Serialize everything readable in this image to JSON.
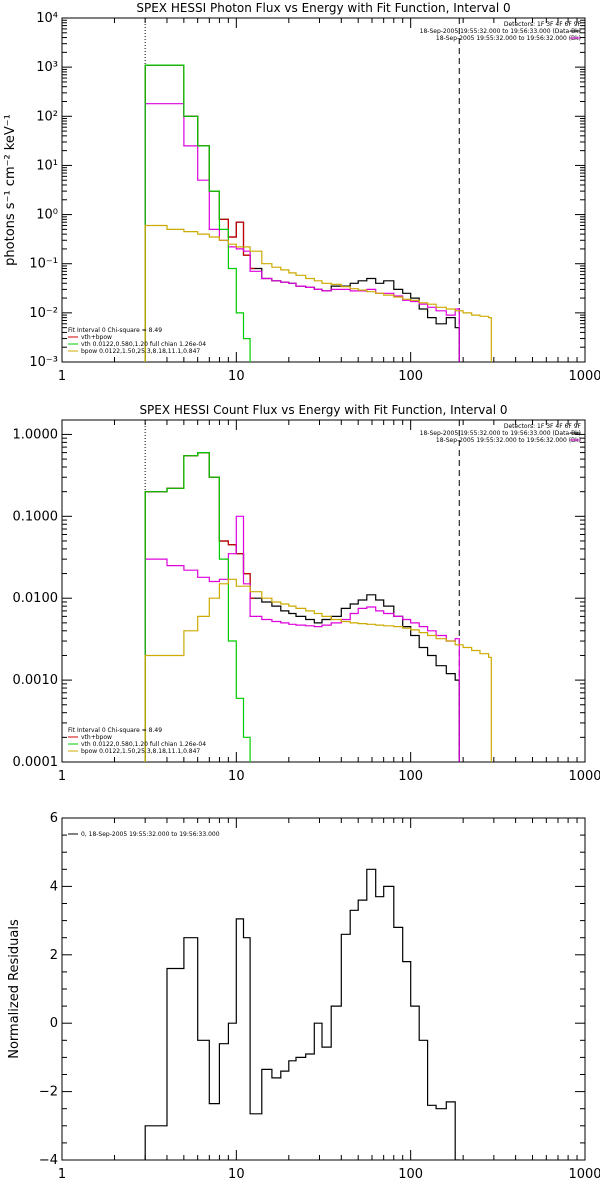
{
  "chart_data": [
    {
      "type": "line",
      "title": "SPEX HESSI Photon Flux vs Energy with Fit Function, Interval 0",
      "ylabel": "photons s⁻¹ cm⁻² keV⁻¹",
      "xlabel": "",
      "xscale": "log",
      "yscale": "log",
      "xlim": [
        1,
        1000
      ],
      "ylim": [
        0.001,
        10000
      ],
      "xticks": [
        {
          "v": 1,
          "label": "1"
        },
        {
          "v": 10,
          "label": "10"
        },
        {
          "v": 100,
          "label": "100"
        },
        {
          "v": 1000,
          "label": "1000"
        }
      ],
      "yticks": [
        {
          "v": 0.001,
          "label": "10⁻³"
        },
        {
          "v": 0.01,
          "label": "10⁻²"
        },
        {
          "v": 0.1,
          "label": "10⁻¹"
        },
        {
          "v": 1,
          "label": "10⁰"
        },
        {
          "v": 10,
          "label": "10¹"
        },
        {
          "v": 100,
          "label": "10²"
        },
        {
          "v": 1000,
          "label": "10³"
        },
        {
          "v": 10000,
          "label": "10⁴"
        }
      ],
      "vlines": [
        {
          "x": 3,
          "style": "dotted"
        },
        {
          "x": 190,
          "style": "dashed"
        }
      ],
      "info_lines": [
        {
          "text": "Detectors: 1F 3F 4F 6F 9F",
          "color": "#000000"
        },
        {
          "text": "18-Sep-2005 19:55:32.000 to 19:56:33.000 (Data-Bk)",
          "color": "#000000"
        },
        {
          "text": "18-Sep-2005 19:55:32.000 to 19:56:32.000 (Bk)",
          "color": "#000000"
        }
      ],
      "legend": [
        {
          "text": "Fit Interval 0   Chi-square = 8.49",
          "color": "#000000"
        },
        {
          "text": "vth+bpow",
          "color": "#cc0000"
        },
        {
          "text": "vth 0.0122,0.580,1.20  full chian 1.26e-04",
          "color": "#00cc00"
        },
        {
          "text": "bpow 0.0122,1.50,25.3,8.18,11.1,0.847",
          "color": "#ccaa00"
        }
      ],
      "series": [
        {
          "color": "#000000",
          "x": [
            3,
            4,
            5,
            6,
            7,
            8,
            9,
            10,
            11,
            12,
            14,
            16,
            18,
            20,
            22,
            25,
            28,
            31,
            35,
            40,
            45,
            50,
            56,
            63,
            70,
            80,
            90,
            100,
            112,
            125,
            140,
            160,
            180,
            190
          ],
          "y": [
            1100,
            1100,
            100,
            25,
            3,
            0.8,
            0.35,
            0.7,
            0.15,
            0.08,
            0.05,
            0.045,
            0.042,
            0.04,
            0.035,
            0.033,
            0.03,
            0.028,
            0.035,
            0.035,
            0.04,
            0.045,
            0.05,
            0.04,
            0.045,
            0.03,
            0.025,
            0.02,
            0.012,
            0.008,
            0.006,
            0.008,
            0.005,
            0.0005
          ]
        },
        {
          "color": "#cc0000",
          "x": [
            3,
            4,
            5,
            6,
            7,
            8,
            9,
            10,
            11,
            12
          ],
          "y": [
            1100,
            1100,
            100,
            25,
            3,
            0.8,
            0.35,
            0.7,
            0.15,
            0.08
          ]
        },
        {
          "color": "#dd00dd",
          "x": [
            3,
            4,
            5,
            6,
            7,
            8,
            9,
            10,
            11,
            12,
            14,
            16,
            18,
            20,
            22,
            25,
            28,
            31,
            35,
            40,
            45,
            50,
            56,
            63,
            70,
            80,
            90,
            100,
            112,
            125,
            140,
            160,
            180,
            190
          ],
          "y": [
            180,
            180,
            25,
            5,
            0.5,
            0.3,
            0.22,
            0.2,
            0.18,
            0.07,
            0.05,
            0.045,
            0.042,
            0.04,
            0.035,
            0.033,
            0.03,
            0.028,
            0.03,
            0.03,
            0.028,
            0.028,
            0.03,
            0.025,
            0.025,
            0.022,
            0.018,
            0.017,
            0.015,
            0.013,
            0.011,
            0.009,
            0.012,
            0.0005
          ]
        },
        {
          "color": "#00cc00",
          "x": [
            3,
            4,
            5,
            6,
            7,
            8,
            9,
            10,
            11,
            12
          ],
          "y": [
            1100,
            1100,
            100,
            25,
            3,
            0.5,
            0.08,
            0.01,
            0.003,
            0.0005
          ]
        },
        {
          "color": "#ccaa00",
          "x": [
            3,
            4,
            5,
            6,
            7,
            8,
            9,
            10,
            12,
            14,
            16,
            18,
            20,
            22,
            25,
            28,
            31,
            35,
            40,
            45,
            50,
            56,
            63,
            70,
            80,
            90,
            100,
            112,
            125,
            140,
            160,
            180,
            200,
            224,
            250,
            280,
            290
          ],
          "y": [
            0.6,
            0.5,
            0.45,
            0.4,
            0.35,
            0.3,
            0.25,
            0.22,
            0.18,
            0.1,
            0.085,
            0.075,
            0.065,
            0.058,
            0.05,
            0.045,
            0.04,
            0.038,
            0.034,
            0.031,
            0.029,
            0.027,
            0.025,
            0.023,
            0.021,
            0.019,
            0.018,
            0.016,
            0.015,
            0.013,
            0.012,
            0.011,
            0.01,
            0.009,
            0.0085,
            0.008,
            0.0005
          ]
        }
      ]
    },
    {
      "type": "line",
      "title": "SPEX HESSI Count Flux vs Energy with Fit Function, Interval 0",
      "ylabel": "",
      "xlabel": "",
      "xscale": "log",
      "yscale": "log",
      "xlim": [
        1,
        1000
      ],
      "ylim": [
        0.0001,
        1.5
      ],
      "xticks": [
        {
          "v": 1,
          "label": "1"
        },
        {
          "v": 10,
          "label": "10"
        },
        {
          "v": 100,
          "label": "100"
        },
        {
          "v": 1000,
          "label": "1000"
        }
      ],
      "yticks": [
        {
          "v": 0.0001,
          "label": "0.0001"
        },
        {
          "v": 0.001,
          "label": "0.0010"
        },
        {
          "v": 0.01,
          "label": "0.0100"
        },
        {
          "v": 0.1,
          "label": "0.1000"
        },
        {
          "v": 1,
          "label": "1.0000"
        }
      ],
      "vlines": [
        {
          "x": 3,
          "style": "dotted"
        },
        {
          "x": 190,
          "style": "dashed"
        }
      ],
      "info_lines": [
        {
          "text": "Detectors: 1F 3F 4F 6F 9F",
          "color": "#000000"
        },
        {
          "text": "18-Sep-2005 19:55:32.000 to 19:56:33.000 (Data-Bk)",
          "color": "#000000"
        },
        {
          "text": "18-Sep-2005 19:55:32.000 to 19:56:32.000 (Bk)",
          "color": "#000000"
        }
      ],
      "legend": [
        {
          "text": "Fit Interval 0   Chi-square = 8.49",
          "color": "#000000"
        },
        {
          "text": "vth+bpow",
          "color": "#cc0000"
        },
        {
          "text": "vth 0.0122,0.580,1.20  full chian 1.26e-04",
          "color": "#00cc00"
        },
        {
          "text": "bpow 0.0122,1.50,25.3,8.18,11.1,0.847",
          "color": "#ccaa00"
        }
      ],
      "series": [
        {
          "color": "#000000",
          "x": [
            3,
            4,
            5,
            6,
            7,
            8,
            9,
            10,
            11,
            12,
            14,
            16,
            18,
            20,
            22,
            25,
            28,
            31,
            35,
            40,
            45,
            50,
            56,
            63,
            70,
            80,
            90,
            100,
            112,
            125,
            140,
            160,
            180,
            190
          ],
          "y": [
            0.2,
            0.22,
            0.55,
            0.6,
            0.3,
            0.05,
            0.045,
            0.035,
            0.02,
            0.01,
            0.009,
            0.008,
            0.007,
            0.0065,
            0.006,
            0.0055,
            0.005,
            0.0055,
            0.006,
            0.0075,
            0.0085,
            0.0095,
            0.011,
            0.0095,
            0.008,
            0.006,
            0.0045,
            0.0035,
            0.0025,
            0.002,
            0.0015,
            0.0012,
            0.001,
            5e-05
          ]
        },
        {
          "color": "#cc0000",
          "x": [
            3,
            4,
            5,
            6,
            7,
            8,
            9,
            10,
            11,
            12
          ],
          "y": [
            0.2,
            0.22,
            0.55,
            0.6,
            0.3,
            0.05,
            0.045,
            0.035,
            0.02,
            0.01
          ]
        },
        {
          "color": "#dd00dd",
          "x": [
            3,
            4,
            5,
            6,
            7,
            8,
            9,
            10,
            11,
            12,
            14,
            16,
            18,
            20,
            22,
            25,
            28,
            31,
            35,
            40,
            45,
            50,
            56,
            63,
            70,
            80,
            90,
            100,
            112,
            125,
            140,
            160,
            180,
            190
          ],
          "y": [
            0.03,
            0.025,
            0.022,
            0.018,
            0.016,
            0.017,
            0.035,
            0.1,
            0.015,
            0.006,
            0.0055,
            0.0052,
            0.005,
            0.0048,
            0.0047,
            0.0046,
            0.0045,
            0.0047,
            0.005,
            0.0055,
            0.0065,
            0.0075,
            0.0078,
            0.007,
            0.0065,
            0.006,
            0.0055,
            0.005,
            0.0045,
            0.004,
            0.0035,
            0.003,
            0.0032,
            5e-05
          ]
        },
        {
          "color": "#00cc00",
          "x": [
            3,
            4,
            5,
            6,
            7,
            8,
            9,
            10,
            11,
            12
          ],
          "y": [
            0.2,
            0.22,
            0.55,
            0.6,
            0.3,
            0.03,
            0.003,
            0.0006,
            0.0002,
            5e-05
          ]
        },
        {
          "color": "#ccaa00",
          "x": [
            3,
            4,
            5,
            6,
            7,
            8,
            9,
            10,
            12,
            14,
            16,
            18,
            20,
            22,
            25,
            28,
            31,
            35,
            40,
            45,
            50,
            56,
            63,
            70,
            80,
            90,
            100,
            112,
            125,
            140,
            160,
            180,
            200,
            224,
            250,
            280,
            290
          ],
          "y": [
            0.002,
            0.002,
            0.004,
            0.006,
            0.01,
            0.015,
            0.017,
            0.014,
            0.012,
            0.01,
            0.009,
            0.0085,
            0.008,
            0.0075,
            0.007,
            0.0065,
            0.006,
            0.0055,
            0.0052,
            0.005,
            0.0049,
            0.0048,
            0.0047,
            0.0046,
            0.0045,
            0.0043,
            0.0041,
            0.0038,
            0.0035,
            0.0032,
            0.003,
            0.0027,
            0.0025,
            0.0023,
            0.0021,
            0.0019,
            5e-05
          ]
        }
      ]
    },
    {
      "type": "line",
      "title": "",
      "ylabel": "Normalized Residuals",
      "xlabel": "",
      "xscale": "log",
      "yscale": "linear",
      "xlim": [
        1,
        1000
      ],
      "ylim": [
        -4,
        6
      ],
      "xticks": [
        {
          "v": 1,
          "label": "1"
        },
        {
          "v": 10,
          "label": "10"
        },
        {
          "v": 100,
          "label": "100"
        },
        {
          "v": 1000,
          "label": "1000"
        }
      ],
      "yticks": [
        {
          "v": -4,
          "label": "−4"
        },
        {
          "v": -2,
          "label": "−2"
        },
        {
          "v": 0,
          "label": "0"
        },
        {
          "v": 2,
          "label": "2"
        },
        {
          "v": 4,
          "label": "4"
        },
        {
          "v": 6,
          "label": "6"
        }
      ],
      "vlines": [],
      "info_lines": [],
      "legend": [
        {
          "text": "0, 18-Sep-2005 19:55:32.000 to 19:56:33.000",
          "color": "#000000"
        }
      ],
      "series": [
        {
          "color": "#000000",
          "x": [
            3,
            4,
            5,
            6,
            7,
            8,
            9,
            10,
            11,
            12,
            14,
            16,
            18,
            20,
            22,
            25,
            28,
            31,
            35,
            40,
            45,
            50,
            56,
            63,
            70,
            80,
            90,
            100,
            112,
            125,
            140,
            160,
            180,
            190
          ],
          "y": [
            -3.0,
            1.6,
            2.5,
            -0.5,
            -2.35,
            -0.6,
            0.0,
            3.05,
            2.5,
            -2.65,
            -1.35,
            -1.6,
            -1.4,
            -1.1,
            -1.0,
            -0.9,
            0.0,
            -0.7,
            0.5,
            2.6,
            3.3,
            3.6,
            4.5,
            3.7,
            4.0,
            2.8,
            1.8,
            0.5,
            -0.5,
            -2.4,
            -2.5,
            -2.3,
            -4.0,
            -4.5
          ]
        }
      ]
    }
  ]
}
